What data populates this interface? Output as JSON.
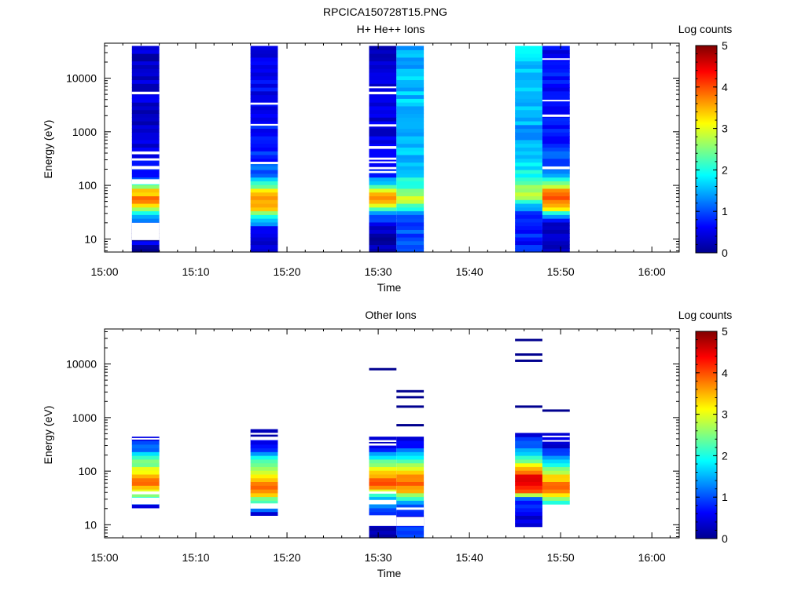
{
  "figure_title": "RPCICA150728T15.PNG",
  "chart_data": [
    {
      "type": "heatmap",
      "title": "H+ He++ Ions",
      "xlabel": "Time",
      "ylabel": "Energy (eV)",
      "colorbar_label": "Log counts",
      "y_scale": "log",
      "ylim": [
        5.7,
        45000
      ],
      "xlim": [
        "15:00",
        "16:03"
      ],
      "x_ticks": [
        "15:00",
        "15:10",
        "15:20",
        "15:30",
        "15:40",
        "15:50",
        "16:00"
      ],
      "y_ticks": [
        10,
        100,
        1000,
        10000
      ],
      "y_tick_labels": [
        "10",
        "100",
        "1000",
        "10000"
      ],
      "colorbar_range": [
        0,
        5
      ],
      "colorbar_ticks": [
        "0",
        "1",
        "2",
        "3",
        "4",
        "5"
      ],
      "colormap": [
        "#00008f",
        "#0000ff",
        "#0080ff",
        "#00ffff",
        "#80ff80",
        "#ffff00",
        "#ff8000",
        "#ff0000",
        "#800000"
      ],
      "columns": [
        {
          "start": "15:03",
          "end": "15:06",
          "seed": 3,
          "profile": [
            [
              6,
              0
            ],
            [
              9,
              0.5
            ],
            [
              12,
              -1
            ],
            [
              20,
              1.2
            ],
            [
              30,
              1.6
            ],
            [
              45,
              3.6
            ],
            [
              60,
              3.8
            ],
            [
              80,
              3.3
            ],
            [
              100,
              2.2
            ],
            [
              150,
              0.8
            ],
            [
              400,
              0.5
            ],
            [
              1500,
              0.4
            ],
            [
              40000,
              0.3
            ]
          ],
          "gaps": [
            [
              9.5,
              20
            ],
            [
              105,
              130
            ],
            [
              200,
              230
            ],
            [
              290,
              320
            ],
            [
              380,
              430
            ],
            [
              5000,
              5600
            ]
          ]
        },
        {
          "start": "15:16",
          "end": "15:19",
          "seed": 7,
          "profile": [
            [
              6,
              0.4
            ],
            [
              15,
              0.6
            ],
            [
              25,
              1.8
            ],
            [
              35,
              3.2
            ],
            [
              50,
              3.7
            ],
            [
              70,
              3.6
            ],
            [
              100,
              2.4
            ],
            [
              150,
              1.3
            ],
            [
              300,
              0.8
            ],
            [
              2000,
              0.6
            ],
            [
              40000,
              0.5
            ]
          ],
          "gaps": [
            [
              250,
              275
            ],
            [
              1300,
              1400
            ],
            [
              3200,
              3500
            ]
          ]
        },
        {
          "start": "15:29",
          "end": "15:32",
          "seed": 11,
          "profile": [
            [
              6,
              0.1
            ],
            [
              15,
              0.3
            ],
            [
              30,
              1.2
            ],
            [
              45,
              3.0
            ],
            [
              55,
              3.9
            ],
            [
              75,
              3.4
            ],
            [
              100,
              2.0
            ],
            [
              160,
              0.8
            ],
            [
              600,
              0.5
            ],
            [
              40000,
              0.3
            ]
          ],
          "gaps": [
            [
              170,
              185
            ],
            [
              200,
              220
            ],
            [
              260,
              280
            ],
            [
              300,
              330
            ],
            [
              480,
              540
            ],
            [
              1250,
              1380
            ],
            [
              5000,
              5600
            ],
            [
              6500,
              7000
            ]
          ]
        },
        {
          "start": "15:32",
          "end": "15:35",
          "seed": 13,
          "profile": [
            [
              6,
              0.9
            ],
            [
              30,
              1.1
            ],
            [
              45,
              2.6
            ],
            [
              60,
              2.9
            ],
            [
              80,
              2.6
            ],
            [
              100,
              2.0
            ],
            [
              200,
              1.7
            ],
            [
              800,
              1.4
            ],
            [
              5000,
              1.6
            ],
            [
              40000,
              1.5
            ]
          ],
          "gaps": []
        },
        {
          "start": "15:45",
          "end": "15:48",
          "seed": 17,
          "profile": [
            [
              6,
              0.7
            ],
            [
              25,
              0.8
            ],
            [
              40,
              1.3
            ],
            [
              55,
              2.6
            ],
            [
              70,
              3.0
            ],
            [
              100,
              2.5
            ],
            [
              200,
              1.8
            ],
            [
              1000,
              1.4
            ],
            [
              8000,
              1.6
            ],
            [
              40000,
              1.7
            ]
          ],
          "gaps": []
        },
        {
          "start": "15:48",
          "end": "15:51",
          "seed": 19,
          "profile": [
            [
              6,
              0.1
            ],
            [
              20,
              0.4
            ],
            [
              30,
              2.0
            ],
            [
              40,
              3.4
            ],
            [
              55,
              3.9
            ],
            [
              80,
              3.5
            ],
            [
              110,
              2.4
            ],
            [
              200,
              1.2
            ],
            [
              1000,
              0.7
            ],
            [
              40000,
              0.6
            ]
          ],
          "gaps": [
            [
              200,
              225
            ],
            [
              1900,
              2100
            ],
            [
              3700,
              3950
            ],
            [
              22000,
              23500
            ]
          ]
        }
      ]
    },
    {
      "type": "heatmap",
      "title": "Other Ions",
      "xlabel": "Time",
      "ylabel": "Energy (eV)",
      "colorbar_label": "Log counts",
      "y_scale": "log",
      "ylim": [
        5.7,
        45000
      ],
      "xlim": [
        "15:00",
        "16:03"
      ],
      "x_ticks": [
        "15:00",
        "15:10",
        "15:20",
        "15:30",
        "15:40",
        "15:50",
        "16:00"
      ],
      "y_ticks": [
        10,
        100,
        1000,
        10000
      ],
      "y_tick_labels": [
        "10",
        "100",
        "1000",
        "10000"
      ],
      "colorbar_range": [
        0,
        5
      ],
      "colorbar_ticks": [
        "0",
        "1",
        "2",
        "3",
        "4",
        "5"
      ],
      "colormap": [
        "#00008f",
        "#0000ff",
        "#0080ff",
        "#00ffff",
        "#80ff80",
        "#ffff00",
        "#ff8000",
        "#ff0000",
        "#800000"
      ],
      "columns": [
        {
          "start": "15:03",
          "end": "15:06",
          "seed": 23,
          "profile": [
            [
              20,
              0.2
            ],
            [
              40,
              2.8
            ],
            [
              60,
              3.9
            ],
            [
              90,
              3.4
            ],
            [
              150,
              2.4
            ],
            [
              250,
              1.3
            ],
            [
              450,
              0.4
            ]
          ],
          "gaps": [
            [
              24,
              32
            ],
            [
              37,
              42
            ],
            [
              400,
              415
            ]
          ],
          "lines": []
        },
        {
          "start": "15:16",
          "end": "15:19",
          "seed": 29,
          "profile": [
            [
              15,
              0.2
            ],
            [
              25,
              1.8
            ],
            [
              40,
              3.5
            ],
            [
              60,
              3.9
            ],
            [
              100,
              3.0
            ],
            [
              160,
              2.0
            ],
            [
              300,
              0.7
            ],
            [
              600,
              0.2
            ]
          ],
          "gaps": [
            [
              20,
              25
            ],
            [
              380,
              440
            ],
            [
              480,
              520
            ]
          ],
          "lines": []
        },
        {
          "start": "15:29",
          "end": "15:32",
          "seed": 31,
          "profile": [
            [
              6,
              0.1
            ],
            [
              15,
              0.6
            ],
            [
              30,
              1.5
            ],
            [
              45,
              3.2
            ],
            [
              60,
              4.2
            ],
            [
              90,
              3.4
            ],
            [
              150,
              2.3
            ],
            [
              250,
              1.0
            ],
            [
              420,
              0.2
            ]
          ],
          "gaps": [
            [
              9.5,
              15
            ],
            [
              24,
              29
            ],
            [
              38,
              42
            ],
            [
              300,
              330
            ],
            [
              350,
              380
            ]
          ],
          "lines": [
            8000
          ]
        },
        {
          "start": "15:32",
          "end": "15:35",
          "seed": 37,
          "profile": [
            [
              6,
              0.9
            ],
            [
              15,
              0.5
            ],
            [
              25,
              1.0
            ],
            [
              40,
              3.2
            ],
            [
              60,
              4.0
            ],
            [
              90,
              3.3
            ],
            [
              150,
              2.2
            ],
            [
              250,
              1.2
            ],
            [
              420,
              0.2
            ]
          ],
          "gaps": [
            [
              9.5,
              14
            ],
            [
              19,
              21
            ]
          ],
          "lines": [
            720,
            1600,
            2400,
            3100
          ]
        },
        {
          "start": "15:45",
          "end": "15:48",
          "seed": 41,
          "profile": [
            [
              10,
              0.2
            ],
            [
              30,
              1.0
            ],
            [
              45,
              4.3
            ],
            [
              70,
              4.7
            ],
            [
              100,
              3.8
            ],
            [
              150,
              2.6
            ],
            [
              250,
              1.4
            ],
            [
              500,
              0.4
            ]
          ],
          "gaps": [],
          "lines": [
            1600,
            11500,
            15000,
            28000
          ]
        },
        {
          "start": "15:48",
          "end": "15:51",
          "seed": 43,
          "profile": [
            [
              25,
              1.6
            ],
            [
              35,
              3.0
            ],
            [
              50,
              3.9
            ],
            [
              70,
              3.5
            ],
            [
              110,
              2.4
            ],
            [
              200,
              1.3
            ],
            [
              300,
              0.4
            ],
            [
              500,
              0.2
            ]
          ],
          "gaps": [
            [
              360,
              380
            ],
            [
              430,
              460
            ]
          ],
          "lines": [
            1350
          ]
        }
      ]
    }
  ]
}
